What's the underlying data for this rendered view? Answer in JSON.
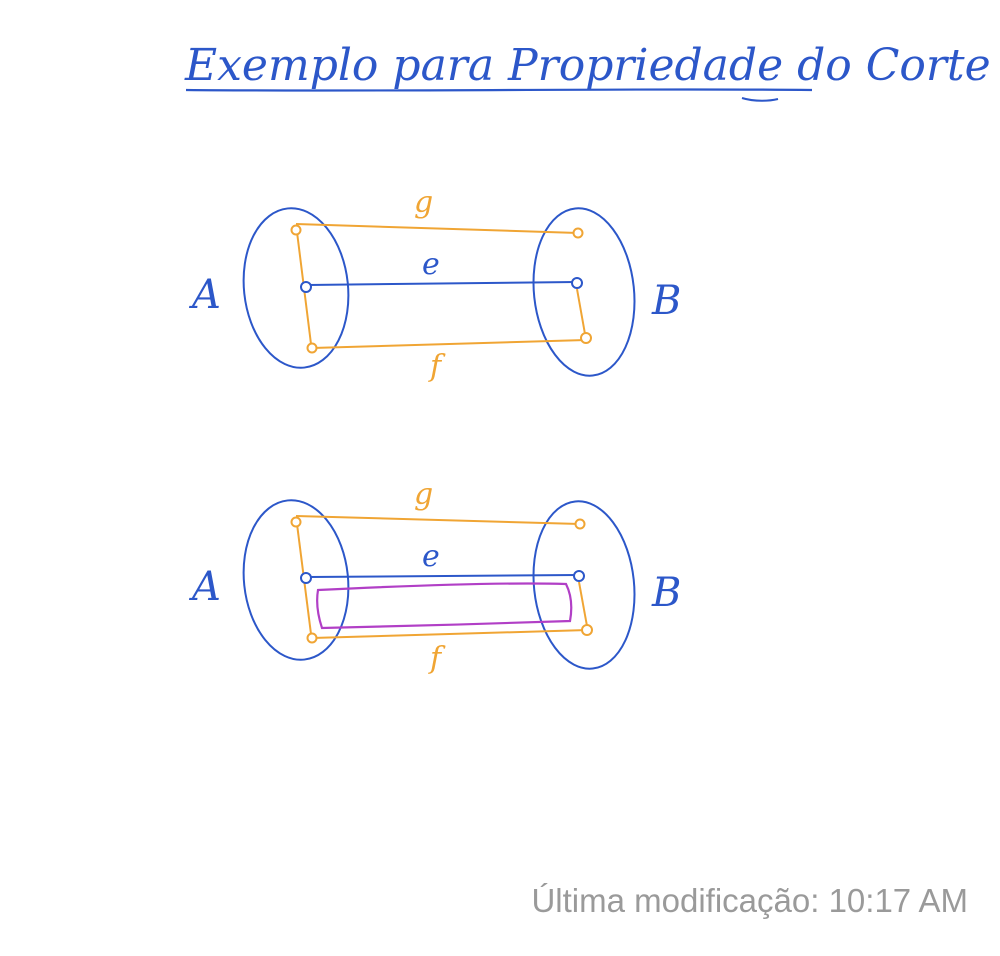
{
  "title": "Exemplo para Propriedade do Corte",
  "colors": {
    "ink_blue": "#2c57c9",
    "orange": "#f0a534",
    "purple": "#b13fc6",
    "footer_gray": "#9a9a9a"
  },
  "diagrams": [
    {
      "set_left": "A",
      "set_right": "B",
      "edges": [
        {
          "label": "g",
          "color": "orange"
        },
        {
          "label": "e",
          "color": "blue"
        },
        {
          "label": "f",
          "color": "orange"
        }
      ],
      "highlight_cycle": false
    },
    {
      "set_left": "A",
      "set_right": "B",
      "edges": [
        {
          "label": "g",
          "color": "orange"
        },
        {
          "label": "e",
          "color": "blue"
        },
        {
          "label": "f",
          "color": "orange"
        }
      ],
      "highlight_cycle": true
    }
  ],
  "footer": {
    "last_modified": "Última modificação: 10:17 AM"
  }
}
